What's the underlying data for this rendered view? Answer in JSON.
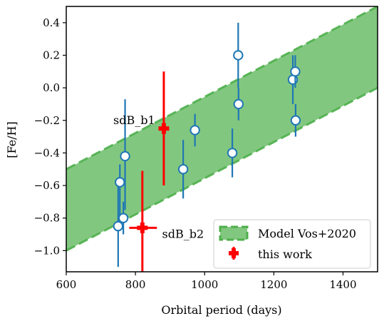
{
  "chart_data": {
    "type": "scatter",
    "xlabel": "Orbital period (days)",
    "ylabel": "[Fe/H]",
    "xlim": [
      600,
      1500
    ],
    "ylim": [
      -1.13,
      0.5
    ],
    "xticks": [
      600,
      800,
      1000,
      1200,
      1400
    ],
    "xtick_labels": [
      "600",
      "800",
      "1000",
      "1200",
      "1400"
    ],
    "yticks": [
      -1.0,
      -0.8,
      -0.6,
      -0.4,
      -0.2,
      0.0,
      0.2,
      0.4
    ],
    "ytick_labels": [
      "−1.0",
      "−0.8",
      "−0.6",
      "−0.4",
      "−0.2",
      "0.0",
      "0.2",
      "0.4"
    ],
    "grid": false,
    "legend_position": "lower-right",
    "band": {
      "name": "Model Vos+2020",
      "color": "#4daf4a",
      "lower": [
        [
          600,
          -1.0
        ],
        [
          1500,
          0.0
        ]
      ],
      "upper": [
        [
          600,
          -0.5
        ],
        [
          1500,
          0.5
        ]
      ]
    },
    "series": [
      {
        "color": "#1f77b4",
        "points": [
          {
            "x": 750,
            "y": -0.85,
            "ylo": -1.1,
            "yhi": -0.6
          },
          {
            "x": 755,
            "y": -0.58,
            "ylo": -0.8,
            "yhi": -0.47
          },
          {
            "x": 765,
            "y": -0.8,
            "ylo": -0.9,
            "yhi": -0.7
          },
          {
            "x": 770,
            "y": -0.42,
            "ylo": -0.75,
            "yhi": -0.07
          },
          {
            "x": 938,
            "y": -0.5,
            "ylo": -0.68,
            "yhi": -0.32
          },
          {
            "x": 972,
            "y": -0.26,
            "ylo": -0.36,
            "yhi": -0.16
          },
          {
            "x": 1080,
            "y": -0.4,
            "ylo": -0.55,
            "yhi": -0.25
          },
          {
            "x": 1097,
            "y": 0.2,
            "ylo": 0.0,
            "yhi": 0.4
          },
          {
            "x": 1098,
            "y": -0.1,
            "ylo": -0.2,
            "yhi": 0.0
          },
          {
            "x": 1255,
            "y": 0.05,
            "ylo": -0.1,
            "yhi": 0.2
          },
          {
            "x": 1262,
            "y": 0.1,
            "ylo": 0.0,
            "yhi": 0.2
          },
          {
            "x": 1263,
            "y": -0.2,
            "ylo": -0.3,
            "yhi": -0.1
          }
        ]
      },
      {
        "name": "this work",
        "color": "#ff0000",
        "points": [
          {
            "x": 882,
            "y": -0.25,
            "ylo": -0.6,
            "yhi": 0.1,
            "xlo": 868,
            "xhi": 896
          },
          {
            "x": 820,
            "y": -0.86,
            "ylo": -1.13,
            "yhi": -0.51,
            "xlo": 782,
            "xhi": 862
          }
        ]
      }
    ],
    "annotations": [
      {
        "text": "sdB_b1",
        "x": 736,
        "y": -0.2
      },
      {
        "text": "sdB_b2",
        "x": 877,
        "y": -0.9
      }
    ],
    "legend": [
      {
        "label": "Model Vos+2020",
        "kind": "band",
        "color": "#4daf4a"
      },
      {
        "label": "this work",
        "kind": "marker",
        "color": "#ff0000"
      }
    ]
  }
}
